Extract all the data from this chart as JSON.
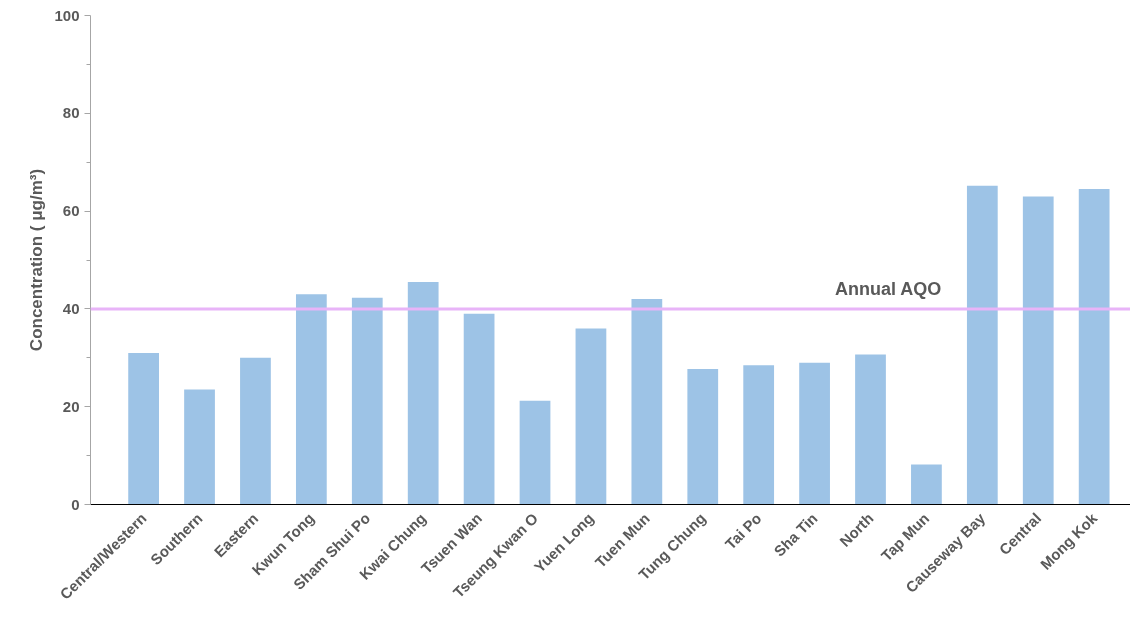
{
  "chart_data": {
    "type": "bar",
    "ylabel": "Concentration ( μg/m³)",
    "categories": [
      "Central/Western",
      "Southern",
      "Eastern",
      "Kwun Tong",
      "Sham Shui Po",
      "Kwai Chung",
      "Tsuen Wan",
      "Tseung Kwan O",
      "Yuen Long",
      "Tuen Mun",
      "Tung Chung",
      "Tai Po",
      "Sha Tin",
      "North",
      "Tap Mun",
      "Causeway Bay",
      "Central",
      "Mong Kok"
    ],
    "values": [
      31,
      23.5,
      30,
      43,
      42.3,
      45.5,
      39,
      21.2,
      36,
      42,
      27.7,
      28.5,
      29,
      30.7,
      8.2,
      65.2,
      63,
      64.5
    ],
    "color": "#9dc3e6",
    "ylim": [
      0,
      100
    ],
    "yticks": [
      0,
      20,
      40,
      60,
      80,
      100
    ],
    "grid": false,
    "ref_lines": [
      {
        "axis": "y",
        "value": 40,
        "label": "Annual AQO",
        "color": "#e8b4f8"
      }
    ]
  }
}
